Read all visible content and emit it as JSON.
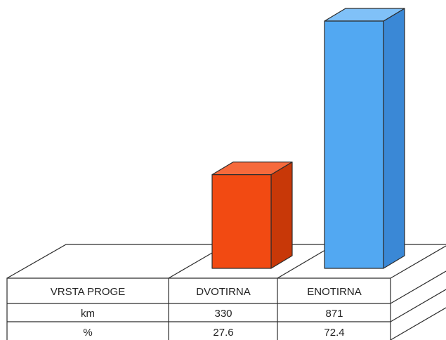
{
  "chart_data": {
    "type": "bar",
    "categories": [
      "DVOTIRNA",
      "ENOTIRNA"
    ],
    "series": [
      {
        "values": [
          330,
          871
        ]
      }
    ],
    "table": {
      "header_label": "VRSTA PROGE",
      "rows": [
        {
          "label": "km",
          "values": [
            "330",
            "871"
          ]
        },
        {
          "label": "%",
          "values": [
            "27.6",
            "72.4"
          ]
        }
      ]
    },
    "ylim": [
      0,
      871
    ],
    "grid": false,
    "legend": "none"
  },
  "colors": {
    "bar_front": [
      "#f24a12",
      "#52a8f2"
    ],
    "bar_side": [
      "#c83808",
      "#3a88d6"
    ],
    "bar_top": [
      "#f66a3c",
      "#80c1f8"
    ],
    "outline": "#2c2c2c"
  }
}
